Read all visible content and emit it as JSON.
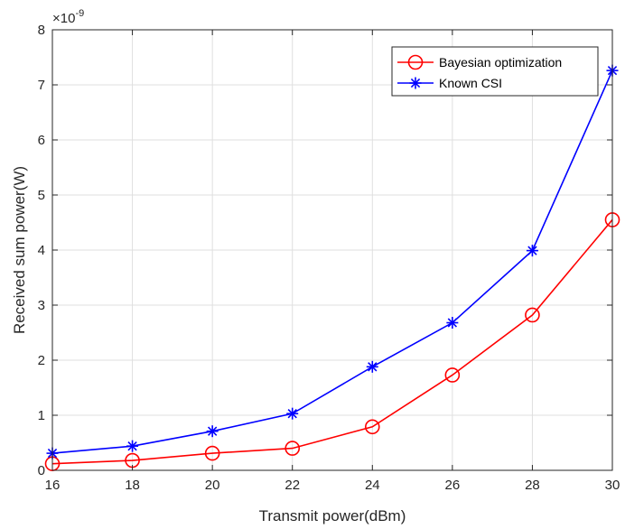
{
  "chart_data": {
    "type": "line",
    "title": "",
    "xlabel": "Transmit power(dBm)",
    "ylabel": "Received sum power(W)",
    "y_exponent_label": "×10",
    "y_exponent_power": "-9",
    "xlim": [
      16,
      30
    ],
    "ylim": [
      0,
      8
    ],
    "x": [
      16,
      18,
      20,
      22,
      24,
      26,
      28,
      30
    ],
    "xticks": [
      16,
      18,
      20,
      22,
      24,
      26,
      28,
      30
    ],
    "yticks": [
      0,
      1,
      2,
      3,
      4,
      5,
      6,
      7,
      8
    ],
    "grid": true,
    "legend_position": "top-right",
    "series": [
      {
        "name": "Bayesian optimization",
        "color": "#ff0000",
        "marker": "circle",
        "values": [
          0.12,
          0.18,
          0.31,
          0.4,
          0.79,
          1.73,
          2.82,
          4.55
        ]
      },
      {
        "name": "Known CSI",
        "color": "#0000ff",
        "marker": "asterisk",
        "values": [
          0.31,
          0.44,
          0.71,
          1.03,
          1.88,
          2.68,
          3.99,
          7.26
        ]
      }
    ]
  }
}
